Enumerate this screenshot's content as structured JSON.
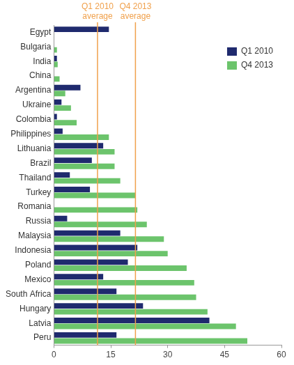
{
  "chart_data": {
    "type": "bar",
    "orientation": "horizontal",
    "categories": [
      "Egypt",
      "Bulgaria",
      "India",
      "China",
      "Argentina",
      "Ukraine",
      "Colombia",
      "Philippines",
      "Lithuania",
      "Brazil",
      "Thailand",
      "Turkey",
      "Romania",
      "Russia",
      "Malaysia",
      "Indonesia",
      "Poland",
      "Mexico",
      "South Africa",
      "Hungary",
      "Latvia",
      "Peru"
    ],
    "series": [
      {
        "name": "Q1 2010",
        "color": "#1f2a6e",
        "values": [
          14.5,
          null,
          0.8,
          null,
          7,
          2,
          0.8,
          2.3,
          13,
          10,
          4.2,
          9.5,
          null,
          3.5,
          17.5,
          22,
          19.5,
          13,
          16.5,
          23.5,
          41,
          16.5
        ]
      },
      {
        "name": "Q4 2013",
        "color": "#6cc46c",
        "values": [
          null,
          0.8,
          1.0,
          1.5,
          3,
          4.5,
          6,
          14.5,
          16,
          16,
          17.5,
          21.5,
          22,
          24.5,
          29,
          30,
          35,
          37,
          37.5,
          40.5,
          48,
          51
        ]
      }
    ],
    "reference_lines": [
      {
        "label": [
          "Q1 2010",
          "average"
        ],
        "value": 11.5,
        "color": "#f0a04b"
      },
      {
        "label": [
          "Q4 2013",
          "average"
        ],
        "value": 21.5,
        "color": "#f0a04b"
      }
    ],
    "xlim": [
      0,
      60
    ],
    "xticks": [
      0,
      15,
      30,
      45,
      60
    ],
    "grid": false,
    "legend": "upper right"
  }
}
